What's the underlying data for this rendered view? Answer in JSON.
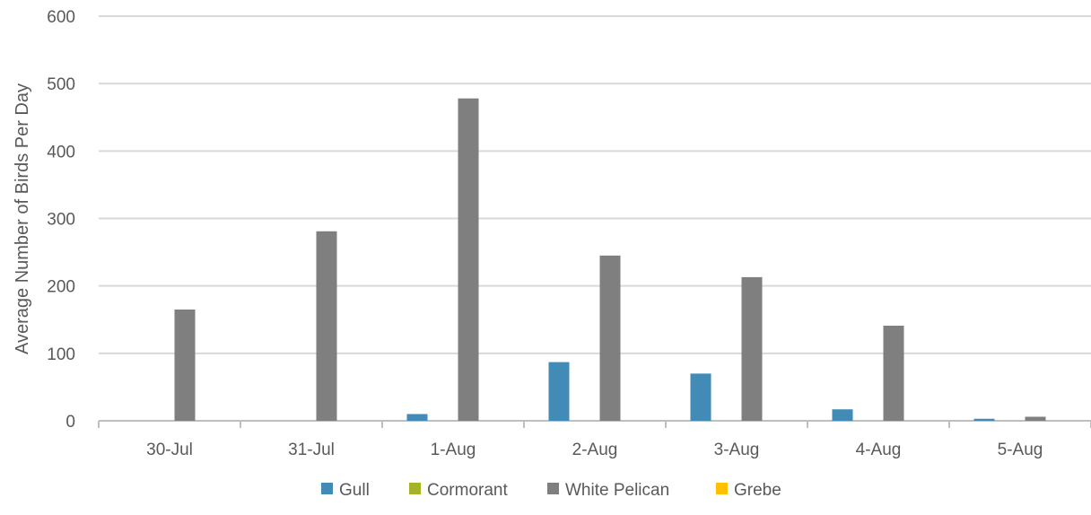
{
  "chart_data": {
    "type": "bar",
    "title": "",
    "xlabel": "",
    "ylabel": "Average Number of Birds Per Day",
    "ylim": [
      0,
      600
    ],
    "yticks": [
      0,
      100,
      200,
      300,
      400,
      500,
      600
    ],
    "grid": true,
    "legend_position": "bottom",
    "categories": [
      "30-Jul",
      "31-Jul",
      "1-Aug",
      "2-Aug",
      "3-Aug",
      "4-Aug",
      "5-Aug"
    ],
    "series": [
      {
        "name": "Gull",
        "color": "#428BB7",
        "values": [
          0,
          0,
          10,
          87,
          70,
          17,
          3
        ]
      },
      {
        "name": "Cormorant",
        "color": "#A3B427",
        "values": [
          0,
          0,
          0,
          0,
          0,
          0,
          0
        ]
      },
      {
        "name": "White Pelican",
        "color": "#7F7F7F",
        "values": [
          165,
          281,
          478,
          245,
          213,
          141,
          6
        ]
      },
      {
        "name": "Grebe",
        "color": "#FFC000",
        "values": [
          0,
          0,
          0,
          0,
          0,
          0,
          0
        ]
      }
    ]
  }
}
